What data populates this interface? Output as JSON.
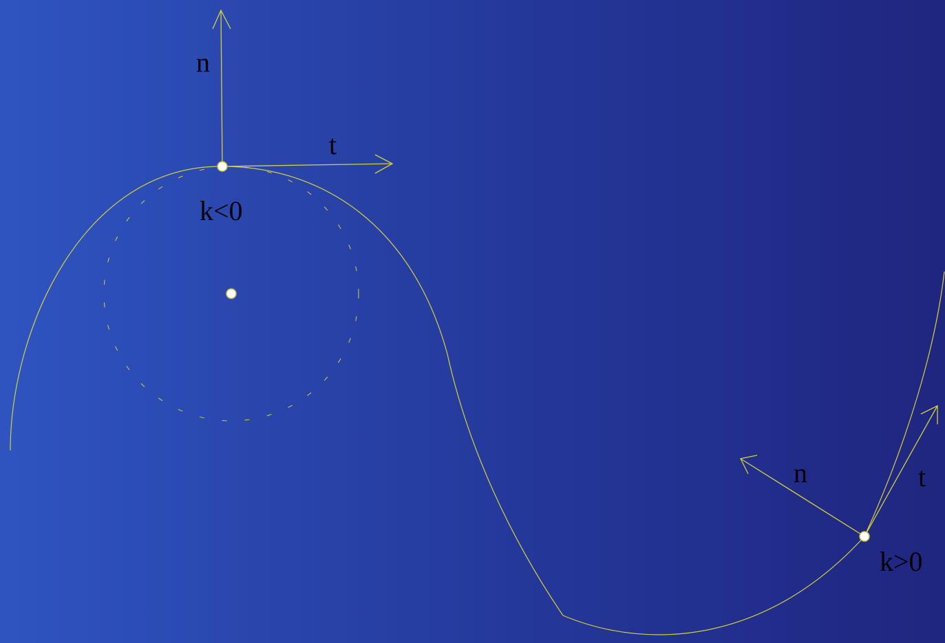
{
  "labels": {
    "normal_left": "n",
    "tangent_left": "t",
    "curvature_left": "k<0",
    "normal_right": "n",
    "tangent_right": "t",
    "curvature_right": "k>0"
  },
  "colors": {
    "background_left": "#2f54c0",
    "background_right": "#1f2680",
    "curve": "#d6d23a",
    "point_fill": "#ffffff",
    "label": "#000000"
  }
}
